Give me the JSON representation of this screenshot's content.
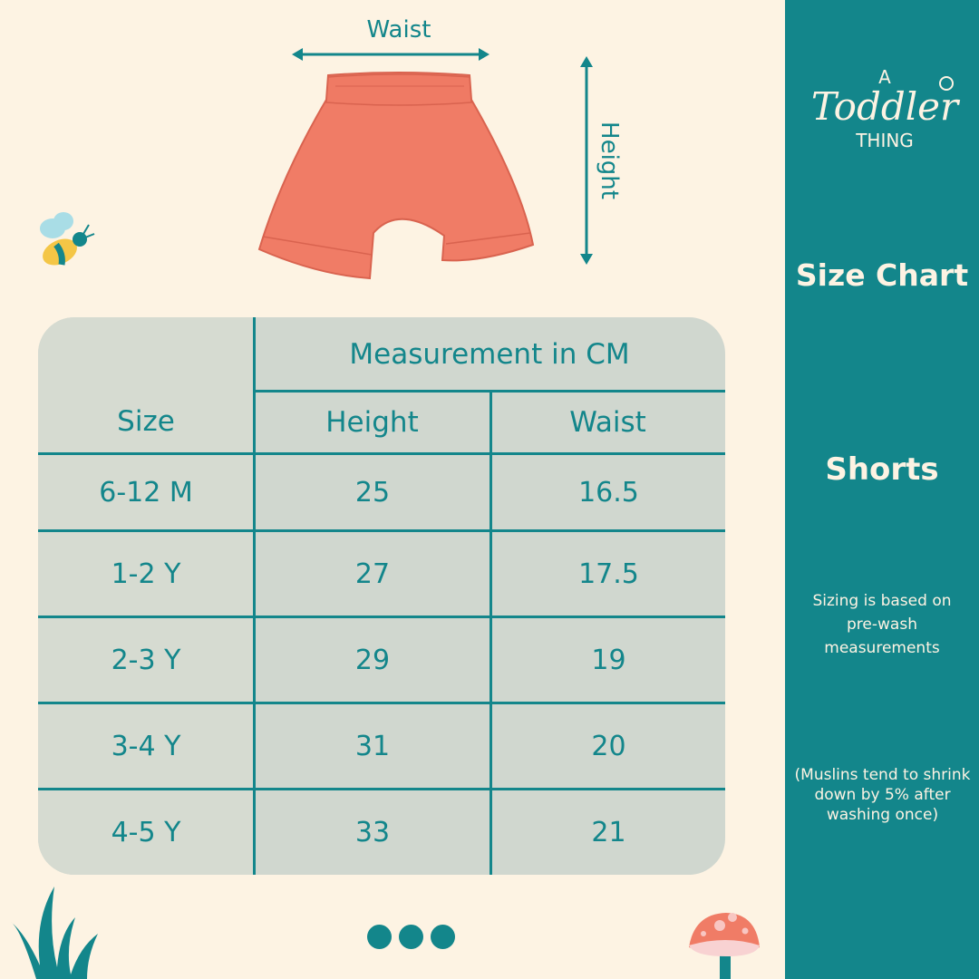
{
  "brand": {
    "logo_text": "A Toddler Thing"
  },
  "sidebar": {
    "title": "Size Chart",
    "product": "Shorts",
    "note_1": "Sizing is based on pre-wash measurements",
    "note_2": "(Muslins tend to shrink down by 5% after washing once)"
  },
  "diagram": {
    "waist_label": "Waist",
    "height_label": "Height"
  },
  "table": {
    "size_header": "Size",
    "group_header": "Measurement in CM",
    "columns": [
      "Height",
      "Waist"
    ],
    "rows": [
      {
        "size": "6-12 M",
        "height": "25",
        "waist": "16.5"
      },
      {
        "size": "1-2 Y",
        "height": "27",
        "waist": "17.5"
      },
      {
        "size": "2-3 Y",
        "height": "29",
        "waist": "19"
      },
      {
        "size": "3-4 Y",
        "height": "31",
        "waist": "20"
      },
      {
        "size": "4-5 Y",
        "height": "33",
        "waist": "21"
      }
    ]
  },
  "colors": {
    "teal": "#13868b",
    "background": "#fdf3e3",
    "table": "#d0d7cf",
    "shorts": "#f07c66"
  }
}
